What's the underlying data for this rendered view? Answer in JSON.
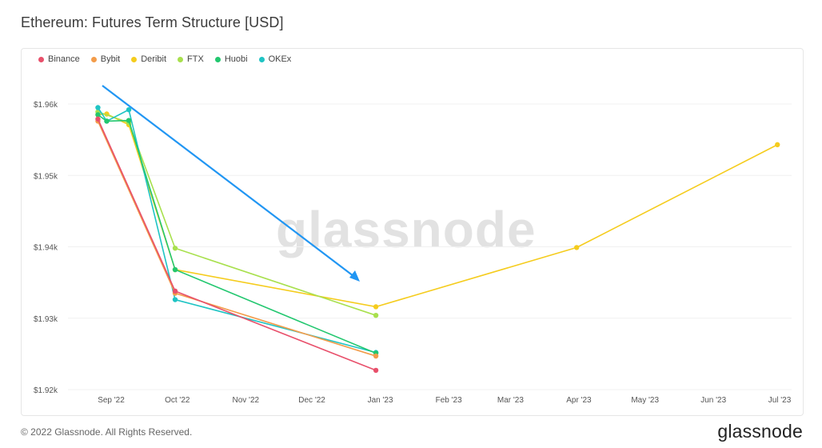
{
  "title": "Ethereum: Futures Term Structure [USD]",
  "footer": {
    "copyright": "© 2022 Glassnode. All Rights Reserved.",
    "logo": "glassnode"
  },
  "watermark": "glassnode",
  "colors": {
    "Binance": "#e8506b",
    "Bybit": "#f39c4a",
    "Deribit": "#f5cc1d",
    "FTX": "#a8e04d",
    "Huobi": "#22c76f",
    "OKEx": "#1fc4c4",
    "arrow": "#2196f3"
  },
  "chart_data": {
    "type": "line",
    "title": "Ethereum: Futures Term Structure [USD]",
    "xlabel": "",
    "ylabel": "",
    "x_ticks": [
      "Sep '22",
      "Oct '22",
      "Nov '22",
      "Dec '22",
      "Jan '23",
      "Feb '23",
      "Mar '23",
      "Apr '23",
      "May '23",
      "Jun '23",
      "Jul '23"
    ],
    "y_ticks": [
      "$1.92k",
      "$1.93k",
      "$1.94k",
      "$1.95k",
      "$1.96k"
    ],
    "ylim": [
      1920,
      1960
    ],
    "legend_position": "top-left",
    "grid": true,
    "series": [
      {
        "name": "Binance",
        "points": [
          [
            "2022-08-26",
            1957.9
          ],
          [
            "2022-09-30",
            1933.8
          ],
          [
            "2022-12-30",
            1922.7
          ]
        ]
      },
      {
        "name": "Bybit",
        "points": [
          [
            "2022-08-26",
            1957.6
          ],
          [
            "2022-09-30",
            1933.5
          ],
          [
            "2022-12-30",
            1924.7
          ]
        ]
      },
      {
        "name": "Deribit",
        "points": [
          [
            "2022-08-26",
            1958.5
          ],
          [
            "2022-08-30",
            1958.6
          ],
          [
            "2022-09-09",
            1957.1
          ],
          [
            "2022-09-30",
            1936.8
          ],
          [
            "2022-12-30",
            1931.6
          ],
          [
            "2023-03-31",
            1939.9
          ],
          [
            "2023-06-30",
            1954.3
          ]
        ]
      },
      {
        "name": "FTX",
        "points": [
          [
            "2022-08-26",
            1958.9
          ],
          [
            "2022-09-09",
            1957.4
          ],
          [
            "2022-09-30",
            1939.8
          ],
          [
            "2022-12-30",
            1930.4
          ]
        ]
      },
      {
        "name": "Huobi",
        "points": [
          [
            "2022-08-26",
            1958.5
          ],
          [
            "2022-08-30",
            1957.6
          ],
          [
            "2022-09-09",
            1957.7
          ],
          [
            "2022-09-30",
            1936.8
          ],
          [
            "2022-12-30",
            1925.1
          ]
        ]
      },
      {
        "name": "OKEx",
        "points": [
          [
            "2022-08-26",
            1959.5
          ],
          [
            "2022-08-30",
            1957.6
          ],
          [
            "2022-09-09",
            1959.2
          ],
          [
            "2022-09-30",
            1932.6
          ],
          [
            "2022-12-30",
            1925.2
          ]
        ]
      }
    ]
  }
}
